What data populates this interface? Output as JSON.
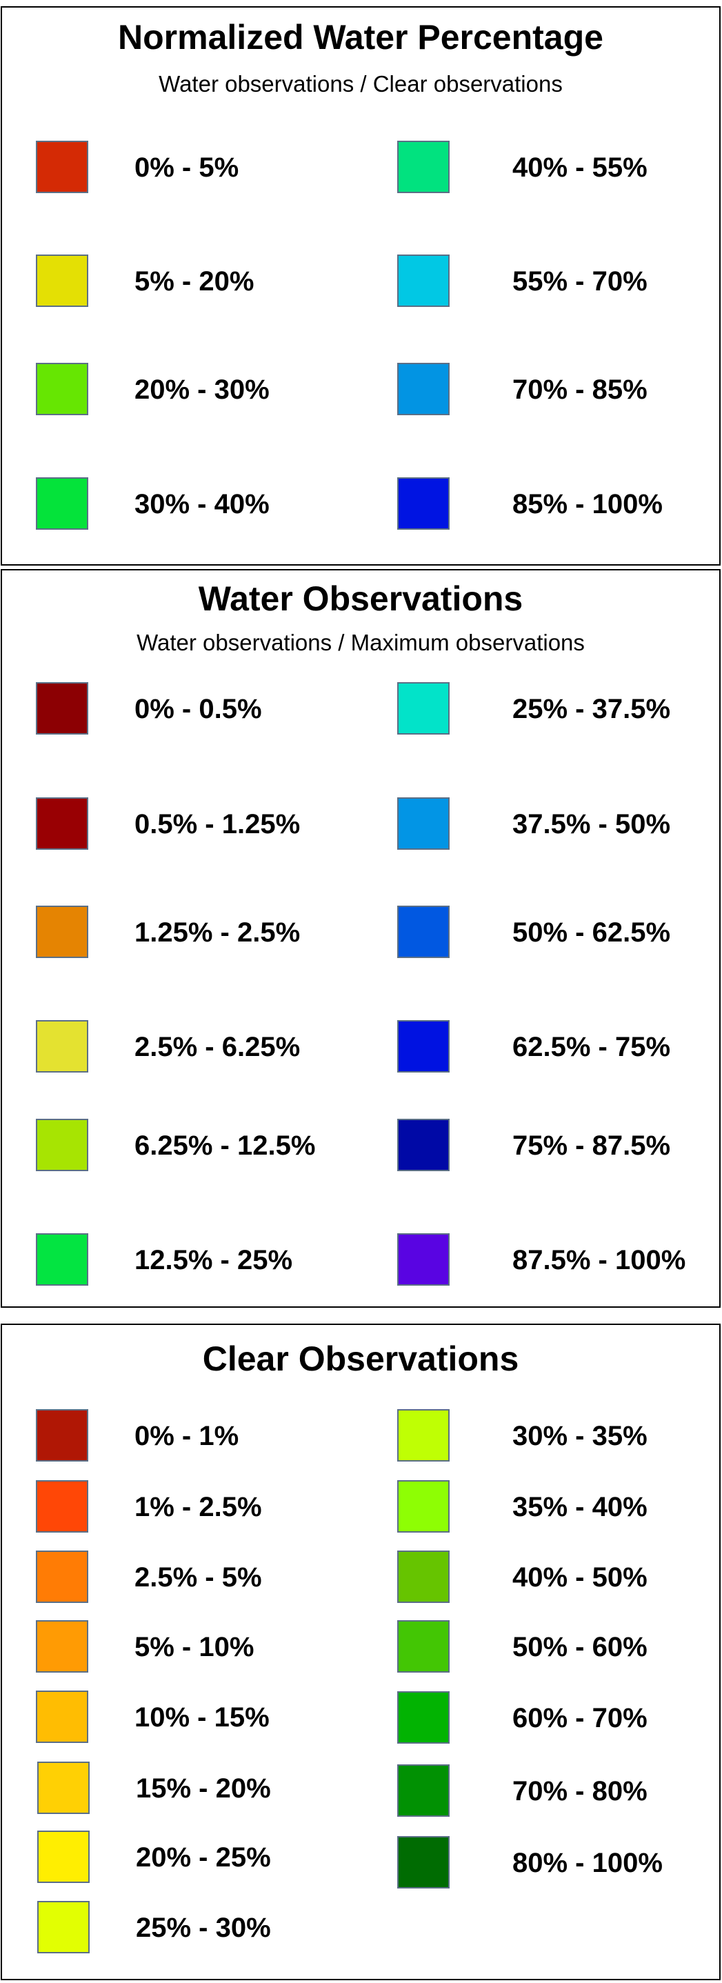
{
  "panels": [
    {
      "title": "Normalized Water Percentage",
      "subtitle": "Water observations / Clear observations",
      "items": [
        {
          "label": "0% - 5%",
          "color": "#d42a05"
        },
        {
          "label": "5% - 20%",
          "color": "#e4e004"
        },
        {
          "label": "20% - 30%",
          "color": "#66e602"
        },
        {
          "label": "30% - 40%",
          "color": "#04e33a"
        },
        {
          "label": "40% - 55%",
          "color": "#01e27f"
        },
        {
          "label": "55% - 70%",
          "color": "#01c8e4"
        },
        {
          "label": "70% - 85%",
          "color": "#0294e3"
        },
        {
          "label": "85% - 100%",
          "color": "#0014e2"
        }
      ]
    },
    {
      "title": "Water Observations",
      "subtitle": "Water observations / Maximum observations",
      "items": [
        {
          "label": "0% - 0.5%",
          "color": "#8c0003"
        },
        {
          "label": "0.5% - 1.25%",
          "color": "#990003"
        },
        {
          "label": "1.25% - 2.5%",
          "color": "#e58402"
        },
        {
          "label": "2.5% - 6.25%",
          "color": "#e4e230"
        },
        {
          "label": "6.25% - 12.5%",
          "color": "#a7e402"
        },
        {
          "label": "12.5% - 25%",
          "color": "#03e441"
        },
        {
          "label": "25% - 37.5%",
          "color": "#02e3c9"
        },
        {
          "label": "37.5% - 50%",
          "color": "#0295e5"
        },
        {
          "label": "50% - 62.5%",
          "color": "#0158e1"
        },
        {
          "label": "62.5% - 75%",
          "color": "#0012e1"
        },
        {
          "label": "75% - 87.5%",
          "color": "#0009a6"
        },
        {
          "label": "87.5% - 100%",
          "color": "#5904e2"
        }
      ]
    },
    {
      "title": "Clear Observations",
      "subtitle": "",
      "items": [
        {
          "label": "0% - 1%",
          "color": "#b01705"
        },
        {
          "label": "1% - 2.5%",
          "color": "#ff4706"
        },
        {
          "label": "2.5% - 5%",
          "color": "#ff7c05"
        },
        {
          "label": "5% - 10%",
          "color": "#ff9b04"
        },
        {
          "label": "10% - 15%",
          "color": "#ffbd02"
        },
        {
          "label": "15% - 20%",
          "color": "#ffd004"
        },
        {
          "label": "20% - 25%",
          "color": "#ffee01"
        },
        {
          "label": "25% - 30%",
          "color": "#e2ff02"
        },
        {
          "label": "30% - 35%",
          "color": "#bfff04"
        },
        {
          "label": "35% - 40%",
          "color": "#8efe04"
        },
        {
          "label": "40% - 50%",
          "color": "#66c400"
        },
        {
          "label": "50% - 60%",
          "color": "#43c604"
        },
        {
          "label": "60% - 70%",
          "color": "#02b302"
        },
        {
          "label": "70% - 80%",
          "color": "#019103"
        },
        {
          "label": "80% - 100%",
          "color": "#006c02"
        }
      ]
    }
  ]
}
